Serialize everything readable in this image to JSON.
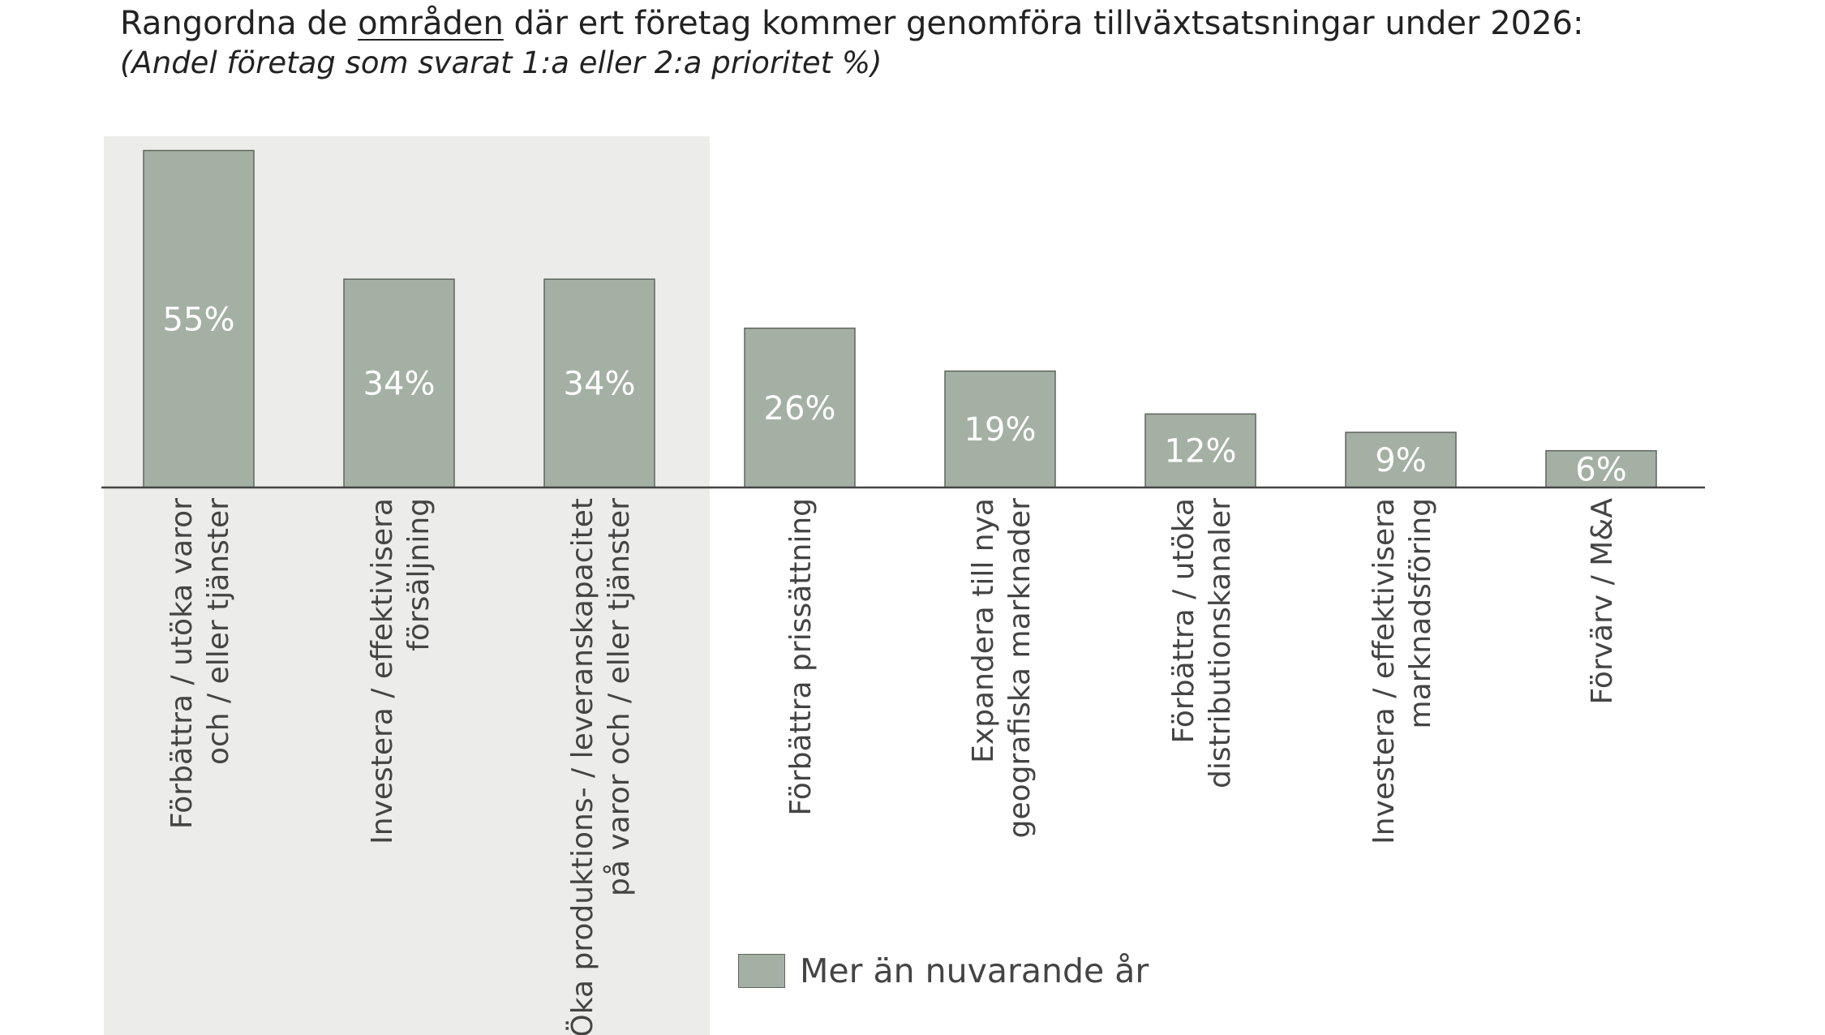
{
  "title": {
    "prefix": "Rangordna de ",
    "underlined": "områden",
    "suffix": " där ert företag kommer genomföra tillväxtsatsningar under 2026:"
  },
  "subtitle": "(Andel företag som svarat 1:a eller 2:a prioritet %)",
  "legend": {
    "label": "Mer än nuvarande år"
  },
  "colors": {
    "bar": "#a5b0a4",
    "bar_stroke": "#5e655e",
    "highlight_band": "#ecedea",
    "axis": "#444444",
    "value_label": "#ffffff",
    "category_label": "#444444"
  },
  "chart_data": {
    "type": "bar",
    "title": "Rangordna de områden där ert företag kommer genomföra tillväxtsatsningar under 2026:",
    "subtitle": "(Andel företag som svarat 1:a eller 2:a prioritet %)",
    "categories": [
      [
        "Förbättra / utöka varor",
        "och / eller tjänster"
      ],
      [
        "Investera / effektivisera",
        "försäljning"
      ],
      [
        "Öka produktions- / leveranskapacitet",
        "på varor och / eller tjänster"
      ],
      [
        "Förbättra prissättning"
      ],
      [
        "Expandera till nya",
        "geografiska marknader"
      ],
      [
        "Förbättra / utöka",
        "distributionskanaler"
      ],
      [
        "Investera / effektivisera",
        "marknadsföring"
      ],
      [
        "Förvärv / M&A"
      ]
    ],
    "series": [
      {
        "name": "Mer än nuvarande år",
        "values": [
          55,
          34,
          34,
          26,
          19,
          12,
          9,
          6
        ]
      }
    ],
    "value_labels": [
      "55%",
      "34%",
      "34%",
      "26%",
      "19%",
      "12%",
      "9%",
      "6%"
    ],
    "highlighted_categories": [
      0,
      1,
      2
    ],
    "ylim": [
      0,
      56
    ],
    "grid": false,
    "legend_position": "bottom-center",
    "category_label_orientation": "vertical"
  }
}
